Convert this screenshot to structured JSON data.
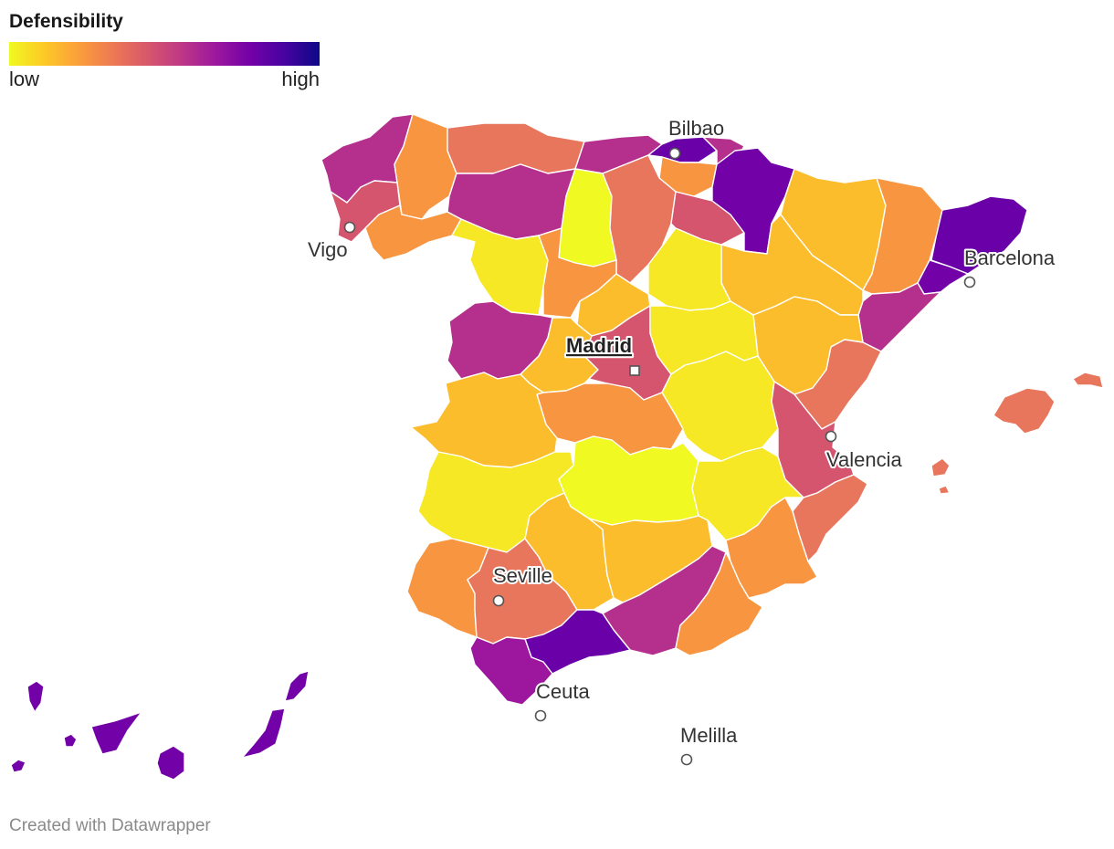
{
  "legend": {
    "title": "Defensibility",
    "low_label": "low",
    "high_label": "high",
    "scale_colors": [
      "#f0f921",
      "#fdca26",
      "#fb9f3a",
      "#ed7953",
      "#d8576b",
      "#bd3786",
      "#9c179e",
      "#7201a8",
      "#46039f",
      "#0d0887"
    ]
  },
  "cities": {
    "bilbao": "Bilbao",
    "vigo": "Vigo",
    "barcelona": "Barcelona",
    "madrid": "Madrid",
    "valencia": "Valencia",
    "seville": "Seville",
    "ceuta": "Ceuta",
    "melilla": "Melilla"
  },
  "footer": {
    "credit": "Created with Datawrapper"
  }
}
